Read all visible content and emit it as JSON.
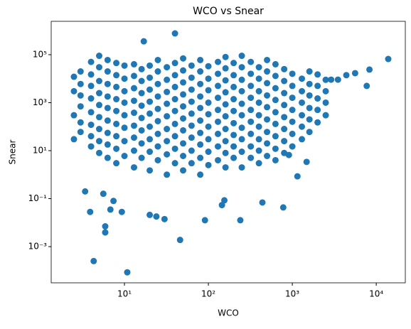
{
  "chart_data": {
    "type": "scatter",
    "title": "WCO vs Snear",
    "x_label": "WCO",
    "y_label": "Snear",
    "xscale": "log",
    "yscale": "log",
    "xlim": [
      1.34,
      22200
    ],
    "ylim": [
      3.1e-05,
      2460000
    ],
    "xticks": [
      {
        "value": 10,
        "label": "10¹"
      },
      {
        "value": 100,
        "label": "10²"
      },
      {
        "value": 1000,
        "label": "10³"
      },
      {
        "value": 10000,
        "label": "10⁴"
      }
    ],
    "yticks": [
      {
        "value": 0.001,
        "label": "10⁻³"
      },
      {
        "value": 0.1,
        "label": "10⁻¹"
      },
      {
        "value": 10,
        "label": "10¹"
      },
      {
        "value": 1000,
        "label": "10³"
      },
      {
        "value": 100000,
        "label": "10⁵"
      }
    ],
    "series": [
      {
        "color": "#1f77b4",
        "x": [
          2.5,
          2.5,
          2.5,
          2.5,
          3,
          3,
          3,
          3,
          3,
          3,
          4,
          4,
          4,
          4,
          4,
          4,
          4,
          4,
          5,
          5,
          5,
          5,
          5,
          5,
          5,
          5,
          5,
          6.3,
          6.3,
          6.3,
          6.3,
          6.3,
          6.3,
          6.3,
          6.3,
          6.3,
          8,
          8,
          8,
          8,
          8,
          8,
          8,
          8,
          8,
          10,
          10,
          10,
          10,
          10,
          10,
          10,
          10,
          13,
          13,
          13,
          13,
          13,
          13,
          13,
          13,
          13,
          16,
          16,
          16,
          16,
          16,
          16,
          16,
          16,
          20,
          20,
          20,
          20,
          20,
          20,
          20,
          20,
          20,
          25,
          25,
          25,
          25,
          25,
          25,
          25,
          25,
          25,
          32,
          32,
          32,
          32,
          32,
          32,
          32,
          32,
          32,
          40,
          40,
          40,
          40,
          40,
          40,
          40,
          40,
          40,
          50,
          50,
          50,
          50,
          50,
          50,
          50,
          50,
          50,
          50,
          63,
          63,
          63,
          63,
          63,
          63,
          63,
          63,
          63,
          80,
          80,
          80,
          80,
          80,
          80,
          80,
          80,
          80,
          80,
          100,
          100,
          100,
          100,
          100,
          100,
          100,
          100,
          100,
          130,
          130,
          130,
          130,
          130,
          130,
          130,
          130,
          130,
          160,
          160,
          160,
          160,
          160,
          160,
          160,
          160,
          160,
          160,
          200,
          200,
          200,
          200,
          200,
          200,
          200,
          200,
          200,
          250,
          250,
          250,
          250,
          250,
          250,
          250,
          250,
          250,
          250,
          320,
          320,
          320,
          320,
          320,
          320,
          320,
          320,
          320,
          400,
          400,
          400,
          400,
          400,
          400,
          400,
          400,
          400,
          500,
          500,
          500,
          500,
          500,
          500,
          500,
          500,
          500,
          630,
          630,
          630,
          630,
          630,
          630,
          630,
          630,
          630,
          800,
          800,
          800,
          800,
          800,
          800,
          800,
          800,
          1000,
          1000,
          1000,
          1000,
          1000,
          1000,
          1000,
          1300,
          1300,
          1300,
          1300,
          1300,
          1300,
          1600,
          1600,
          1600,
          1600,
          1600,
          1600,
          2000,
          2000,
          2000,
          2000,
          2000,
          2500,
          2500,
          2500,
          2500,
          40,
          17,
          13900,
          8300,
          7700,
          5600,
          4400,
          3500,
          2900,
          10.8,
          4.3,
          46,
          5.9,
          5.9,
          91,
          240,
          20,
          24,
          30,
          780,
          3.9,
          6.8,
          9.3,
          440,
          145,
          155,
          3.4,
          5.6,
          7.4,
          1150,
          1480,
          910
        ],
        "values": [
          30,
          300,
          3000,
          12000,
          60,
          150,
          700,
          2000,
          6000,
          20000,
          15,
          40,
          120,
          400,
          1500,
          5000,
          15000,
          50000,
          8,
          25,
          80,
          250,
          800,
          2500,
          8000,
          30000,
          90000,
          5,
          18,
          55,
          180,
          600,
          1800,
          6000,
          20000,
          60000,
          3,
          12,
          40,
          130,
          450,
          1400,
          4500,
          14000,
          45000,
          6,
          25,
          90,
          300,
          1000,
          3000,
          10000,
          35000,
          2,
          10,
          35,
          110,
          380,
          1200,
          4000,
          13000,
          40000,
          5,
          20,
          70,
          230,
          750,
          2500,
          8000,
          25000,
          1.5,
          9,
          30,
          100,
          350,
          1100,
          3500,
          11000,
          35000,
          4,
          15,
          50,
          170,
          550,
          1800,
          6000,
          20000,
          60000,
          1,
          7,
          25,
          80,
          270,
          900,
          2800,
          9000,
          30000,
          3,
          12,
          40,
          130,
          450,
          1400,
          4500,
          14000,
          45000,
          1.5,
          6,
          20,
          70,
          220,
          700,
          2200,
          7000,
          22000,
          70000,
          3,
          10,
          35,
          110,
          350,
          1100,
          3500,
          11000,
          35000,
          1,
          5,
          18,
          55,
          180,
          600,
          1800,
          6000,
          20000,
          60000,
          2.5,
          9,
          30,
          100,
          330,
          1000,
          3300,
          10000,
          33000,
          4,
          15,
          50,
          160,
          500,
          1600,
          5000,
          16000,
          50000,
          2,
          8,
          25,
          80,
          270,
          850,
          2700,
          8500,
          27000,
          80000,
          5,
          15,
          45,
          140,
          450,
          1400,
          4500,
          14000,
          45000,
          2,
          9,
          30,
          90,
          300,
          900,
          3000,
          9000,
          30000,
          90000,
          5,
          15,
          50,
          160,
          500,
          1600,
          5000,
          16000,
          50000,
          3,
          10,
          30,
          100,
          300,
          1000,
          3000,
          10000,
          30000,
          6,
          20,
          60,
          200,
          650,
          2000,
          6500,
          20000,
          60000,
          4,
          12,
          40,
          130,
          400,
          1300,
          4000,
          13000,
          40000,
          8,
          25,
          80,
          250,
          800,
          2500,
          8000,
          25000,
          15,
          50,
          160,
          500,
          1600,
          5000,
          16000,
          30,
          100,
          300,
          1000,
          3000,
          10000,
          60,
          200,
          600,
          2000,
          6000,
          20000,
          150,
          500,
          1500,
          5000,
          15000,
          300,
          1000,
          3000,
          9000,
          770000,
          360000,
          66000,
          24000,
          5000,
          17000,
          14000,
          9100,
          9100,
          8.5e-05,
          0.00025,
          0.0019,
          0.007,
          0.0039,
          0.0126,
          0.0126,
          0.021,
          0.018,
          0.014,
          0.043,
          0.028,
          0.035,
          0.028,
          0.069,
          0.054,
          0.085,
          0.2,
          0.16,
          0.08,
          0.85,
          3.4,
          6.6
        ]
      }
    ]
  }
}
